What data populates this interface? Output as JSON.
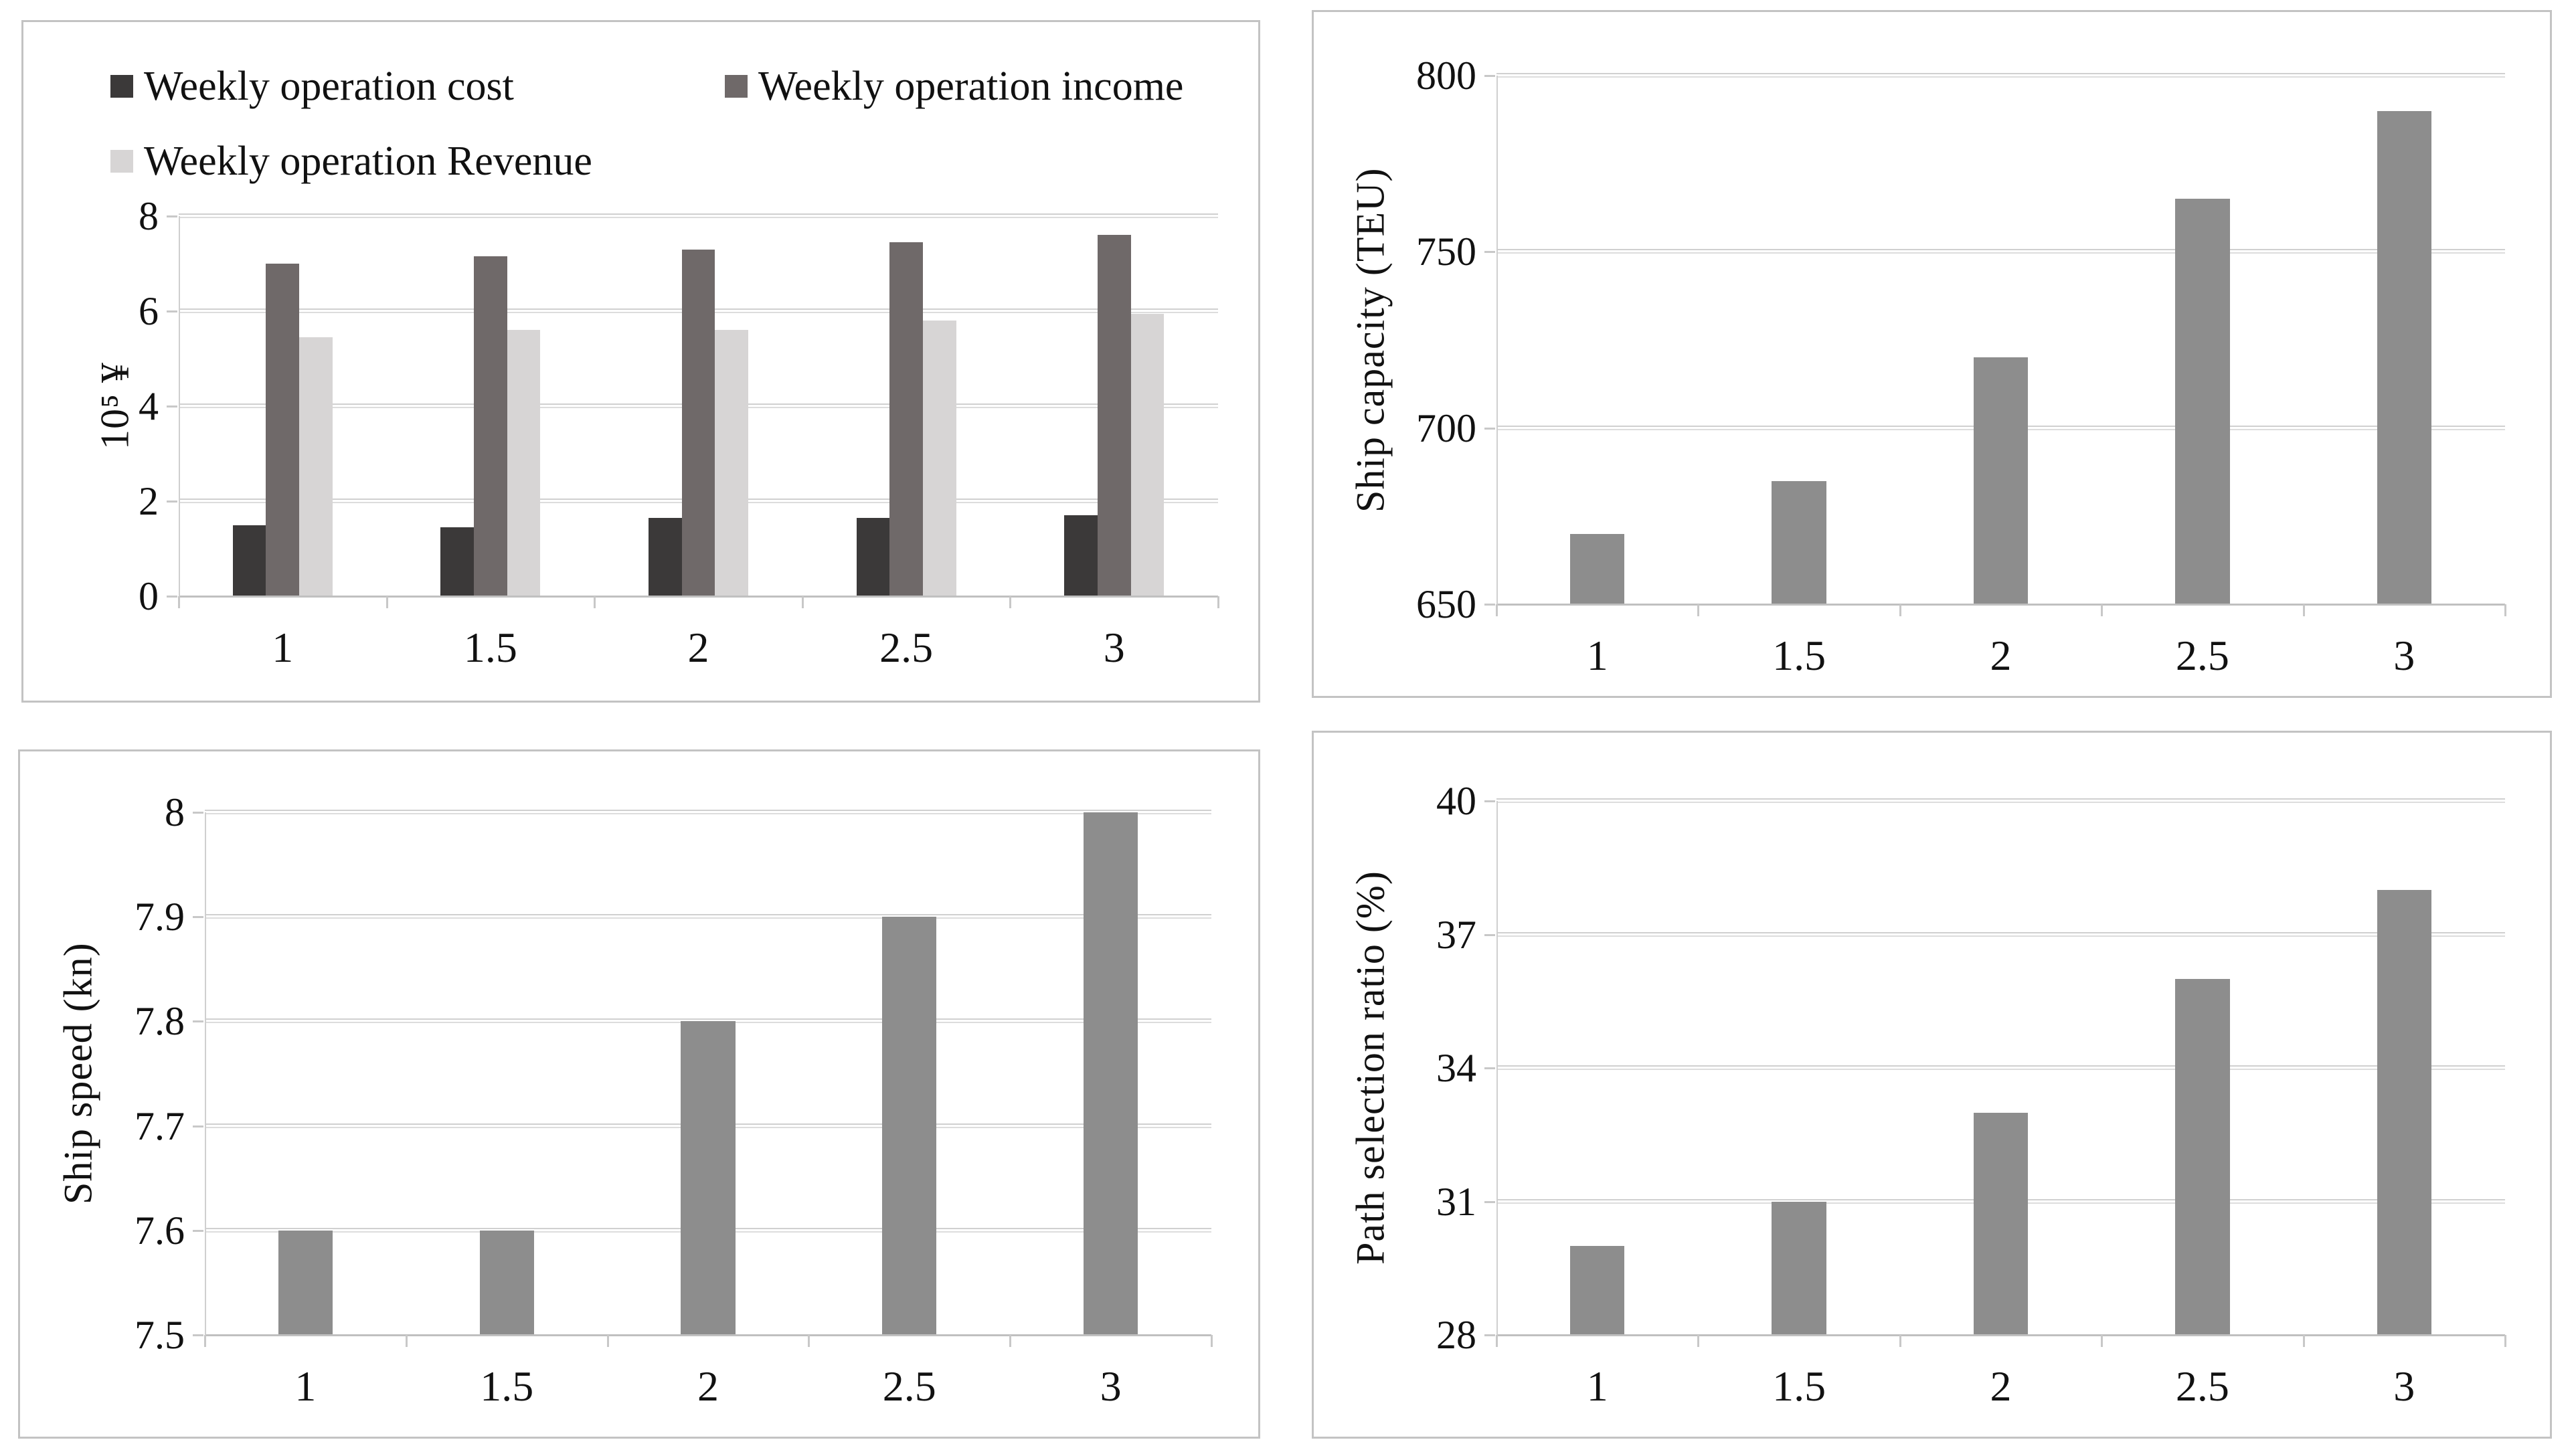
{
  "figure": {
    "description_background": "#ffffff",
    "panel_border_color": "#c3c3c3",
    "gridline_color": "#d0d0d0",
    "axis_color": "#c0c0c0",
    "text_color": "#111111"
  },
  "chart_data": [
    {
      "id": "weekly-operation",
      "type": "bar",
      "categories": [
        "1",
        "1.5",
        "2",
        "2.5",
        "3"
      ],
      "series": [
        {
          "name": "Weekly operation cost",
          "color": "#3b3939",
          "values": [
            1.5,
            1.45,
            1.65,
            1.65,
            1.7
          ]
        },
        {
          "name": "Weekly operation income",
          "color": "#6f6969",
          "values": [
            7.0,
            7.15,
            7.3,
            7.45,
            7.6
          ]
        },
        {
          "name": "Weekly operation Revenue",
          "color": "#d7d5d5",
          "values": [
            5.45,
            5.6,
            5.6,
            5.8,
            5.95
          ]
        }
      ],
      "ylabel": "10⁵ ¥",
      "ylim": [
        0,
        8
      ],
      "yticks": [
        0,
        2,
        4,
        6,
        8
      ],
      "ytick_labels": [
        "0",
        "2",
        "4",
        "6",
        "8"
      ],
      "grid": true,
      "legend_position": "top"
    },
    {
      "id": "ship-capacity",
      "type": "bar",
      "categories": [
        "1",
        "1.5",
        "2",
        "2.5",
        "3"
      ],
      "values": [
        670,
        685,
        720,
        765,
        790
      ],
      "color": "#8d8d8d",
      "ylabel": "Ship capacity (TEU)",
      "ylim": [
        650,
        800
      ],
      "yticks": [
        650,
        700,
        750,
        800
      ],
      "ytick_labels": [
        "650",
        "700",
        "750",
        "800"
      ],
      "grid": true
    },
    {
      "id": "ship-speed",
      "type": "bar",
      "categories": [
        "1",
        "1.5",
        "2",
        "2.5",
        "3"
      ],
      "values": [
        7.6,
        7.6,
        7.8,
        7.9,
        8.0
      ],
      "color": "#8d8d8d",
      "ylabel": "Ship speed (kn)",
      "ylim": [
        7.5,
        8.0
      ],
      "yticks": [
        7.5,
        7.6,
        7.7,
        7.8,
        7.9,
        8.0
      ],
      "ytick_labels": [
        "7.5",
        "7.6",
        "7.7",
        "7.8",
        "7.9",
        "8"
      ],
      "grid": true
    },
    {
      "id": "path-selection-ratio",
      "type": "bar",
      "categories": [
        "1",
        "1.5",
        "2",
        "2.5",
        "3"
      ],
      "values": [
        30,
        31,
        33,
        36,
        38
      ],
      "color": "#8d8d8d",
      "ylabel": "Path selection ratio (%)",
      "ylim": [
        28,
        40
      ],
      "yticks": [
        28,
        31,
        34,
        37,
        40
      ],
      "ytick_labels": [
        "28",
        "31",
        "34",
        "37",
        "40"
      ],
      "grid": true
    }
  ]
}
